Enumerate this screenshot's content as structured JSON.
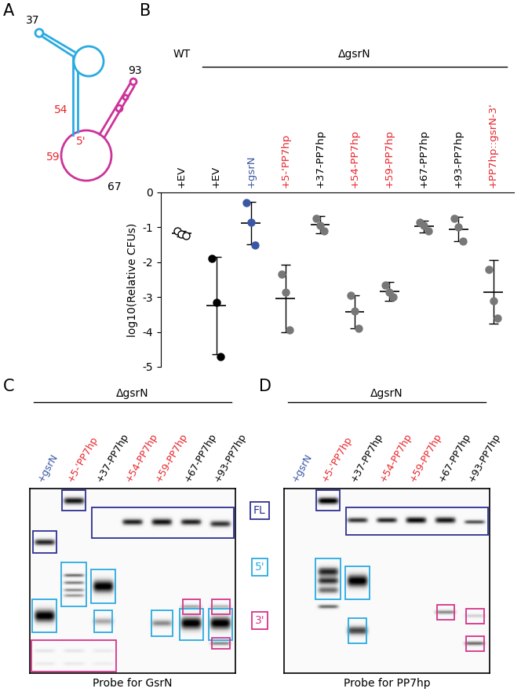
{
  "panels": [
    "A",
    "B",
    "C",
    "D"
  ],
  "diagram": {
    "labels": [
      {
        "text": "37",
        "color": "#000000"
      },
      {
        "text": "93",
        "color": "#000000"
      },
      {
        "text": "54",
        "color": "#e8262c"
      },
      {
        "text": "59",
        "color": "#e8262c"
      },
      {
        "text": "5'",
        "color": "#e8262c"
      },
      {
        "text": "67",
        "color": "#000000"
      }
    ],
    "colors": [
      "#29abe2",
      "#cc3399"
    ]
  },
  "chart_data": {
    "type": "scatter",
    "y_label": "log10(Relative CFUs)",
    "categories": [
      "+EV",
      "+EV",
      "+gsrN",
      "+5-'PP7hp",
      "+37-PP7hp",
      "+54-PP7hp",
      "+59-PP7hp",
      "+67-PP7hp",
      "+93-PP7hp",
      "+PP7hp::gsrN-3'"
    ],
    "label_colors": [
      "#000000",
      "#000000",
      "#3a56a5",
      "#e8262c",
      "#000000",
      "#e8262c",
      "#e8262c",
      "#000000",
      "#000000",
      "#e8262c"
    ],
    "colors": [
      "#ffffff",
      "#000000",
      "#3a56a5",
      "#777777",
      "#777777",
      "#777777",
      "#777777",
      "#777777",
      "#777777",
      "#777777"
    ],
    "marker": "o",
    "points": [
      [
        -1.1,
        -1.2,
        -1.25
      ],
      [
        -1.9,
        -3.15,
        -4.7
      ],
      [
        -0.3,
        -0.85,
        -1.5
      ],
      [
        -2.35,
        -2.85,
        -3.95
      ],
      [
        -0.75,
        -0.95,
        -1.1
      ],
      [
        -2.95,
        -3.4,
        -3.9
      ],
      [
        -2.65,
        -2.85,
        -3.0
      ],
      [
        -0.85,
        -0.95,
        -1.1
      ],
      [
        -0.75,
        -1.0,
        -1.4
      ],
      [
        -2.2,
        -3.1,
        -3.6
      ]
    ],
    "values": [
      -1.18,
      -3.25,
      -0.88,
      -3.05,
      -0.93,
      -3.42,
      -2.83,
      -0.97,
      -1.05,
      -2.85
    ],
    "error": [
      0.08,
      1.4,
      0.6,
      0.97,
      0.25,
      0.47,
      0.27,
      0.17,
      0.35,
      0.92
    ],
    "groups": [
      {
        "label": "WT",
        "first": 0,
        "last": 0
      },
      {
        "label": "ΔgsrN",
        "first": 1,
        "last": 9
      }
    ],
    "ylim": [
      -5,
      0
    ],
    "yticks": [
      0,
      -1,
      -2,
      -3,
      -4,
      -5
    ]
  },
  "blot_legend": [
    {
      "text": "FL",
      "color": "#2e3192"
    },
    {
      "text": "5'",
      "color": "#29abe2"
    },
    {
      "text": "3'",
      "color": "#d6338a"
    }
  ],
  "blots": [
    {
      "group": "ΔgsrN",
      "caption": "Probe for GsrN",
      "lanes": [
        {
          "text": "+gsrN",
          "color": "#3a56a5"
        },
        {
          "text": "+5-'PP7hp",
          "color": "#e8262c"
        },
        {
          "text": "+37-PP7hp",
          "color": "#000000"
        },
        {
          "text": "+54-PP7hp",
          "color": "#e8262c"
        },
        {
          "text": "+59-PP7hp",
          "color": "#e8262c"
        },
        {
          "text": "+67-PP7hp",
          "color": "#000000"
        },
        {
          "text": "+93-PP7hp",
          "color": "#000000"
        }
      ]
    },
    {
      "group": "ΔgsrN",
      "caption": "Probe for PP7hp",
      "lanes": [
        {
          "text": "+gsrN",
          "color": "#3a56a5"
        },
        {
          "text": "+5-'PP7hp",
          "color": "#e8262c"
        },
        {
          "text": "+37-PP7hp",
          "color": "#000000"
        },
        {
          "text": "+54-PP7hp",
          "color": "#e8262c"
        },
        {
          "text": "+59-PP7hp",
          "color": "#e8262c"
        },
        {
          "text": "+67-PP7hp",
          "color": "#000000"
        },
        {
          "text": "+93-PP7hp",
          "color": "#000000"
        }
      ]
    }
  ]
}
